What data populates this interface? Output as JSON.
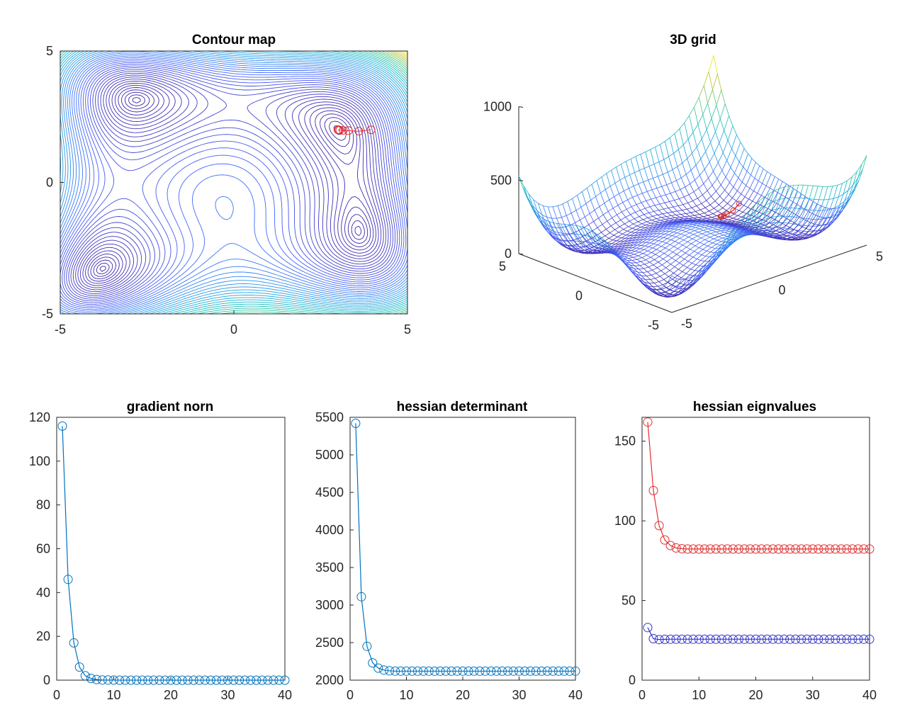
{
  "chart_data": [
    {
      "id": "contour",
      "type": "contour",
      "title": "Contour map",
      "xlim": [
        -5,
        5
      ],
      "ylim": [
        -5,
        5
      ],
      "xticks": [
        -5,
        0,
        5
      ],
      "yticks": [
        -5,
        0,
        5
      ],
      "path_color": "#e03030",
      "path": {
        "x": [
          3.95,
          3.6,
          3.3,
          3.15,
          3.05,
          3.02,
          3.0
        ],
        "y": [
          2.0,
          1.95,
          1.97,
          1.98,
          1.99,
          2.0,
          2.0
        ]
      },
      "minima": [
        {
          "x": -2.805,
          "y": 3.131
        },
        {
          "x": -3.779,
          "y": -3.283
        },
        {
          "x": 3.584,
          "y": -1.848
        },
        {
          "x": 3.0,
          "y": 2.0
        }
      ]
    },
    {
      "id": "mesh",
      "type": "surface",
      "title": "3D grid",
      "zticks": [
        0,
        500,
        1000
      ],
      "xticks": [
        -5,
        0,
        5
      ],
      "yticks": [
        -5,
        0,
        5
      ],
      "zlim": [
        0,
        1000
      ]
    },
    {
      "id": "gradnorm",
      "type": "line",
      "title": "gradient norn",
      "xlim": [
        0,
        40
      ],
      "ylim": [
        0,
        120
      ],
      "xticks": [
        0,
        10,
        20,
        30,
        40
      ],
      "yticks": [
        0,
        20,
        40,
        60,
        80,
        100,
        120
      ],
      "series": [
        {
          "color": "#0072bd",
          "values": [
            116,
            46,
            17,
            6,
            2,
            0.8,
            0.3,
            0.1,
            0.05,
            0.02,
            0.01,
            0,
            0,
            0,
            0,
            0,
            0,
            0,
            0,
            0,
            0,
            0,
            0,
            0,
            0,
            0,
            0,
            0,
            0,
            0,
            0,
            0,
            0,
            0,
            0,
            0,
            0,
            0,
            0,
            0
          ]
        }
      ]
    },
    {
      "id": "hessdet",
      "type": "line",
      "title": "hessian determinant",
      "xlim": [
        0,
        40
      ],
      "ylim": [
        2000,
        5500
      ],
      "xticks": [
        0,
        10,
        20,
        30,
        40
      ],
      "yticks": [
        2000,
        2500,
        3000,
        3500,
        4000,
        4500,
        5000,
        5500
      ],
      "series": [
        {
          "color": "#0072bd",
          "values": [
            5420,
            3110,
            2450,
            2230,
            2160,
            2135,
            2125,
            2120,
            2120,
            2120,
            2120,
            2120,
            2120,
            2120,
            2120,
            2120,
            2120,
            2120,
            2120,
            2120,
            2120,
            2120,
            2120,
            2120,
            2120,
            2120,
            2120,
            2120,
            2120,
            2120,
            2120,
            2120,
            2120,
            2120,
            2120,
            2120,
            2120,
            2120,
            2120,
            2120
          ]
        }
      ]
    },
    {
      "id": "eig",
      "type": "line",
      "title": "hessian eignvalues",
      "xlim": [
        0,
        40
      ],
      "ylim": [
        0,
        165
      ],
      "xticks": [
        0,
        10,
        20,
        30,
        40
      ],
      "yticks": [
        0,
        50,
        100,
        150
      ],
      "series": [
        {
          "color": "#e03030",
          "values": [
            162,
            119,
            97,
            88,
            84.5,
            83,
            82.5,
            82.3,
            82.3,
            82.3,
            82.3,
            82.3,
            82.3,
            82.3,
            82.3,
            82.3,
            82.3,
            82.3,
            82.3,
            82.3,
            82.3,
            82.3,
            82.3,
            82.3,
            82.3,
            82.3,
            82.3,
            82.3,
            82.3,
            82.3,
            82.3,
            82.3,
            82.3,
            82.3,
            82.3,
            82.3,
            82.3,
            82.3,
            82.3,
            82.3
          ]
        },
        {
          "color": "#3030c8",
          "values": [
            33,
            26,
            25.5,
            25.6,
            25.7,
            25.7,
            25.7,
            25.7,
            25.7,
            25.7,
            25.7,
            25.7,
            25.7,
            25.7,
            25.7,
            25.7,
            25.7,
            25.7,
            25.7,
            25.7,
            25.7,
            25.7,
            25.7,
            25.7,
            25.7,
            25.7,
            25.7,
            25.7,
            25.7,
            25.7,
            25.7,
            25.7,
            25.7,
            25.7,
            25.7,
            25.7,
            25.7,
            25.7,
            25.7,
            25.7
          ]
        }
      ]
    }
  ]
}
